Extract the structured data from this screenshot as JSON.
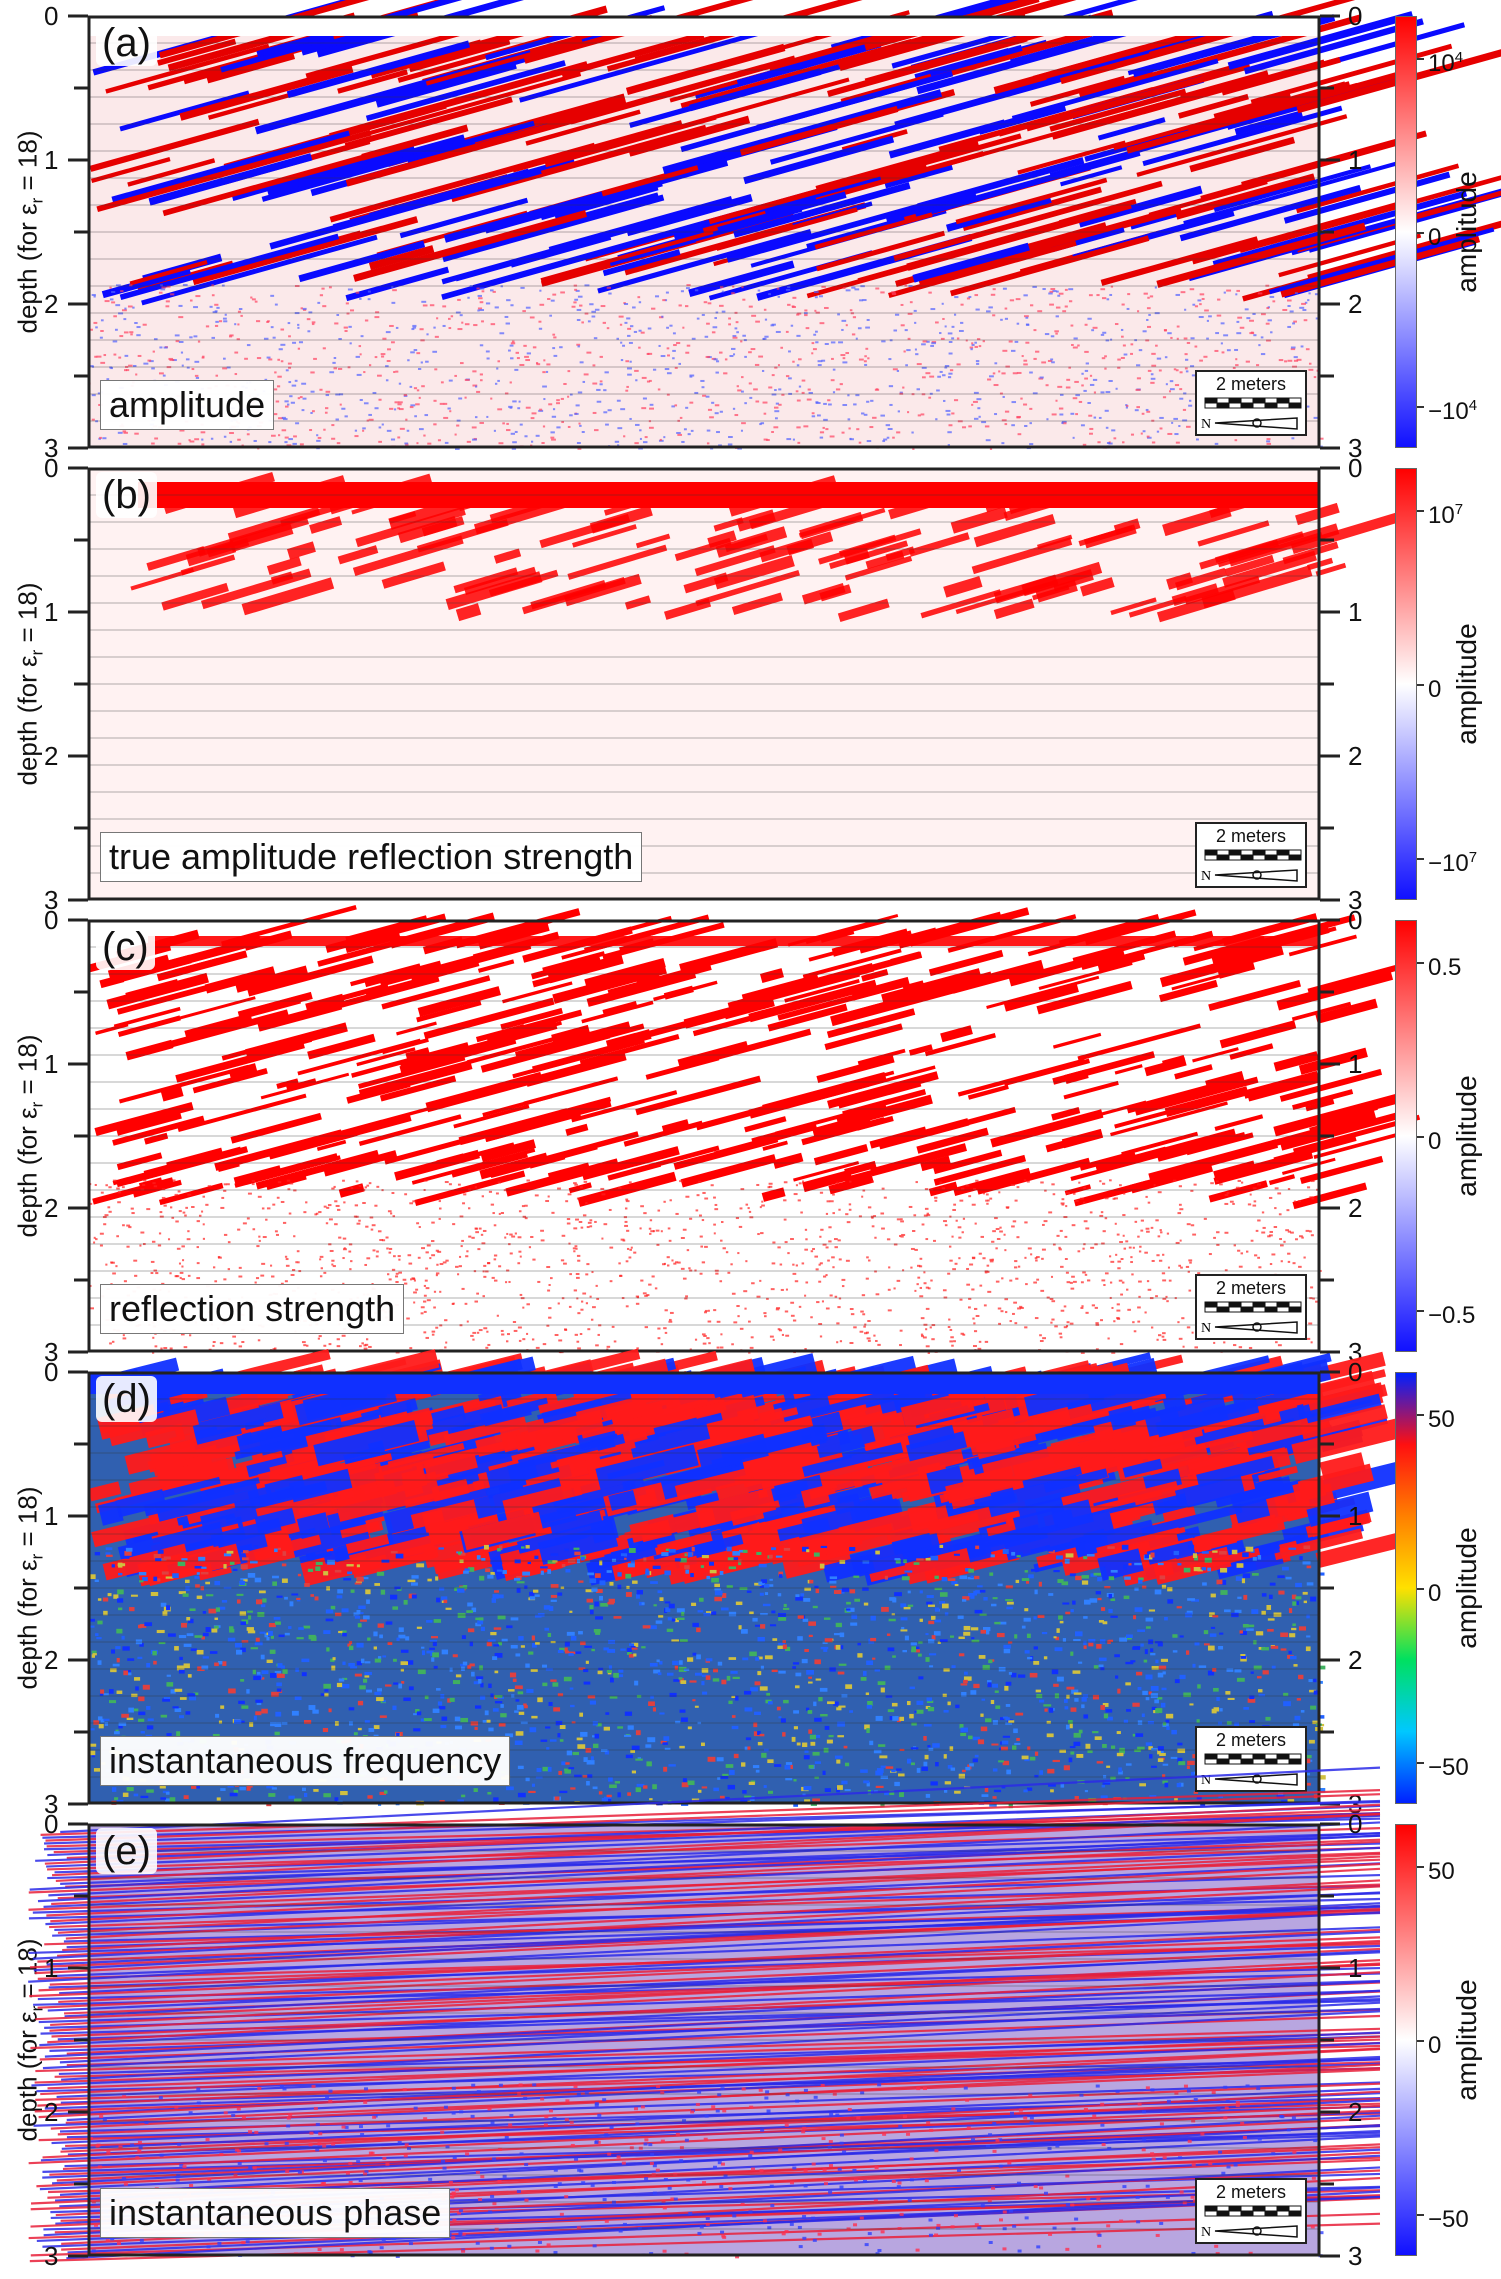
{
  "chart_data": [
    {
      "type": "heatmap",
      "panel_label": "(a)",
      "attribute_label": "amplitude",
      "ylabel": "depth (for ε_r = 18)",
      "ylabel_main": "depth (for ε",
      "ylabel_sub": "r",
      "ylabel_tail": " = 18)",
      "ylim": [
        0,
        3
      ],
      "y_ticks": [
        "0",
        "1",
        "2",
        "3"
      ],
      "colorbar_label": "amplitude",
      "colorbar_ticks": [
        {
          "base": "10",
          "exp": "4",
          "value": 10000
        },
        {
          "base": "0",
          "exp": "",
          "value": 0
        },
        {
          "base": "−10",
          "exp": "4",
          "value": -10000
        }
      ],
      "colormap": [
        "#1010ff",
        "#ffffff",
        "#ff0000"
      ],
      "scale_bar": "2 meters",
      "north_label": "N"
    },
    {
      "type": "heatmap",
      "panel_label": "(b)",
      "attribute_label": "true amplitude reflection strength",
      "ylabel": "depth (for ε_r = 18)",
      "ylabel_main": "depth (for ε",
      "ylabel_sub": "r",
      "ylabel_tail": " = 18)",
      "ylim": [
        0,
        3
      ],
      "y_ticks": [
        "0",
        "1",
        "2",
        "3"
      ],
      "colorbar_label": "amplitude",
      "colorbar_ticks": [
        {
          "base": "10",
          "exp": "7",
          "value": 10000000
        },
        {
          "base": "0",
          "exp": "",
          "value": 0
        },
        {
          "base": "−10",
          "exp": "7",
          "value": -10000000
        }
      ],
      "colormap": [
        "#1010ff",
        "#ffffff",
        "#ff0000"
      ],
      "scale_bar": "2 meters",
      "north_label": "N"
    },
    {
      "type": "heatmap",
      "panel_label": "(c)",
      "attribute_label": "reflection strength",
      "ylabel": "depth (for ε_r = 18)",
      "ylabel_main": "depth (for ε",
      "ylabel_sub": "r",
      "ylabel_tail": " = 18)",
      "ylim": [
        0,
        3
      ],
      "y_ticks": [
        "0",
        "1",
        "2",
        "3"
      ],
      "colorbar_label": "amplitude",
      "colorbar_ticks": [
        {
          "base": "0.5",
          "exp": "",
          "value": 0.5
        },
        {
          "base": "0",
          "exp": "",
          "value": 0
        },
        {
          "base": "−0.5",
          "exp": "",
          "value": -0.5
        }
      ],
      "colormap": [
        "#1010ff",
        "#ffffff",
        "#ff0000"
      ],
      "scale_bar": "2 meters",
      "north_label": "N"
    },
    {
      "type": "heatmap",
      "panel_label": "(d)",
      "attribute_label": "instantaneous frequency",
      "ylabel": "depth (for ε_r = 18)",
      "ylabel_main": "depth (for ε",
      "ylabel_sub": "r",
      "ylabel_tail": " = 18)",
      "ylim": [
        0,
        3
      ],
      "y_ticks": [
        "0",
        "1",
        "2",
        "3"
      ],
      "colorbar_label": "amplitude",
      "colorbar_ticks": [
        {
          "base": "50",
          "exp": "",
          "value": 50
        },
        {
          "base": "0",
          "exp": "",
          "value": 0
        },
        {
          "base": "−50",
          "exp": "",
          "value": -50
        }
      ],
      "colormap": [
        "#0020ff",
        "#00c8ff",
        "#00e060",
        "#ffe000",
        "#ff8000",
        "#ff1010",
        "#0020ff"
      ],
      "scale_bar": "2 meters",
      "north_label": "N"
    },
    {
      "type": "heatmap",
      "panel_label": "(e)",
      "attribute_label": "instantaneous phase",
      "ylabel": "depth (for ε_r = 18)",
      "ylabel_main": "depth (for ε",
      "ylabel_sub": "r",
      "ylabel_tail": " = 18)",
      "ylim": [
        0,
        3
      ],
      "y_ticks": [
        "0",
        "1",
        "2",
        "3"
      ],
      "colorbar_label": "amplitude",
      "colorbar_ticks": [
        {
          "base": "50",
          "exp": "",
          "value": 50
        },
        {
          "base": "0",
          "exp": "",
          "value": 0
        },
        {
          "base": "−50",
          "exp": "",
          "value": -50
        }
      ],
      "colormap": [
        "#1010ff",
        "#ffffff",
        "#ff0000"
      ],
      "scale_bar": "2 meters",
      "north_label": "N"
    }
  ]
}
